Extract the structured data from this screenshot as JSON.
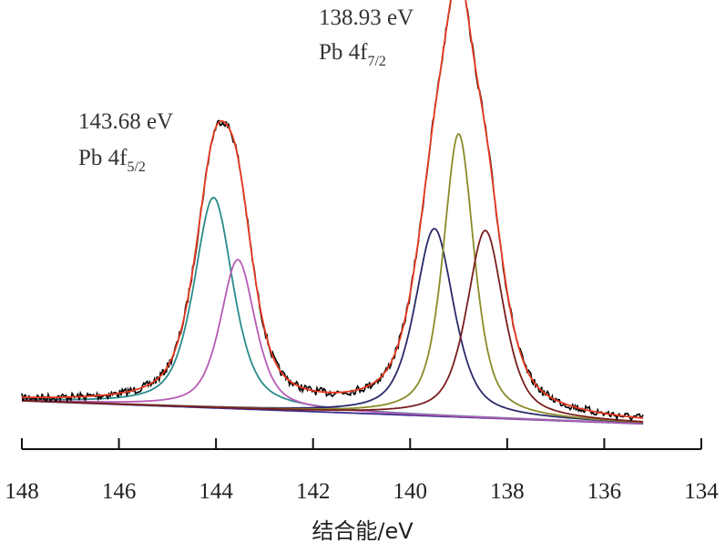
{
  "chart_data": {
    "type": "line",
    "xlabel": "结合能/eV",
    "ylabel": "",
    "xlim": [
      148,
      134
    ],
    "x_reversed": true,
    "y_axis_visible": false,
    "grid": false,
    "legend": "none",
    "x_ticks": [
      148,
      146,
      144,
      142,
      140,
      138,
      136,
      134
    ],
    "x_tick_labels": [
      "148",
      "146",
      "144",
      "142",
      "140",
      "138",
      "136",
      "134"
    ],
    "data_x_range": [
      148,
      135.2
    ],
    "annotations": [
      {
        "energy": "143.68 eV",
        "label_main": "Pb 4f",
        "label_sub": "5/2",
        "near_x": 143.68
      },
      {
        "energy": "138.93 eV",
        "label_main": "Pb 4f",
        "label_sub": "7/2",
        "near_x": 138.93
      }
    ],
    "baseline": {
      "color": "#3a2a8a",
      "x": [
        148,
        135.2
      ],
      "y": [
        0.0,
        -0.06
      ]
    },
    "series": [
      {
        "key": "raw",
        "color": "#000000",
        "kind": "noisy"
      },
      {
        "key": "envelope",
        "color": "#e8391f",
        "kind": "sum"
      },
      {
        "key": "pk1",
        "color": "#2a8a8a",
        "center": 144.05,
        "height": 0.55,
        "fwhm": 0.95
      },
      {
        "key": "pk2",
        "color": "#b65cb6",
        "center": 143.55,
        "height": 0.39,
        "fwhm": 0.85
      },
      {
        "key": "pk3",
        "color": "#2a2a6a",
        "center": 139.5,
        "height": 0.49,
        "fwhm": 0.95
      },
      {
        "key": "pk4",
        "color": "#8a8a2a",
        "center": 139.0,
        "height": 0.74,
        "fwhm": 0.75
      },
      {
        "key": "pk5",
        "color": "#7a1e1e",
        "center": 138.45,
        "height": 0.49,
        "fwhm": 0.9
      }
    ]
  }
}
